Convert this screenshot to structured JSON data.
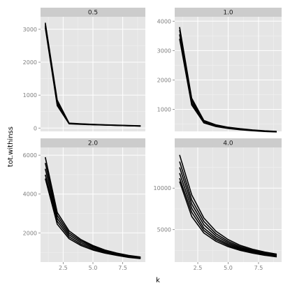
{
  "chart_data": {
    "type": "line",
    "facet_layout": "2x2",
    "xlabel": "k",
    "ylabel": "tot.withinss",
    "x": [
      1,
      2,
      3,
      4,
      5,
      6,
      7,
      8,
      9
    ],
    "xlim": [
      0.6,
      9.4
    ],
    "x_ticks": [
      2.5,
      5.0,
      7.5
    ],
    "x_tick_labels": [
      "2.5",
      "5.0",
      "7.5"
    ],
    "grid": true,
    "background_color": "#e5e5e5",
    "strip_color": "#cccccc",
    "line_color": "#000000",
    "panels": [
      {
        "strip": "0.5",
        "ylim": [
          -100,
          3380
        ],
        "y_ticks": [
          0,
          1000,
          2000,
          3000
        ],
        "y_tick_labels": [
          "0",
          "1000",
          "2000",
          "3000"
        ],
        "show_x_ticks": false,
        "series": [
          {
            "values": [
              3200,
              850,
              150,
              130,
              115,
              100,
              90,
              80,
              70
            ]
          },
          {
            "values": [
              3150,
              780,
              140,
              125,
              110,
              95,
              85,
              75,
              65
            ]
          },
          {
            "values": [
              3100,
              720,
              135,
              120,
              105,
              92,
              82,
              72,
              62
            ]
          },
          {
            "values": [
              3050,
              680,
              130,
              115,
              100,
              90,
              80,
              70,
              60
            ]
          }
        ]
      },
      {
        "strip": "1.0",
        "ylim": [
          250,
          4150
        ],
        "y_ticks": [
          1000,
          2000,
          3000,
          4000
        ],
        "y_tick_labels": [
          "1000",
          "2000",
          "3000",
          "4000"
        ],
        "show_x_ticks": false,
        "series": [
          {
            "values": [
              3800,
              1380,
              620,
              470,
              390,
              340,
              300,
              270,
              250
            ]
          },
          {
            "values": [
              3700,
              1300,
              590,
              450,
              375,
              330,
              290,
              262,
              242
            ]
          },
          {
            "values": [
              3550,
              1220,
              560,
              430,
              360,
              318,
              282,
              255,
              236
            ]
          },
          {
            "values": [
              3400,
              1150,
              540,
              415,
              350,
              305,
              272,
              246,
              230
            ]
          }
        ]
      },
      {
        "strip": "2.0",
        "ylim": [
          500,
          6400
        ],
        "y_ticks": [
          2000,
          4000,
          6000
        ],
        "y_tick_labels": [
          "2000",
          "4000",
          "6000"
        ],
        "show_x_ticks": true,
        "series": [
          {
            "values": [
              5900,
              3050,
              2100,
              1650,
              1350,
              1120,
              960,
              840,
              760
            ]
          },
          {
            "values": [
              5600,
              2900,
              2000,
              1580,
              1300,
              1080,
              930,
              820,
              740
            ]
          },
          {
            "values": [
              5300,
              2750,
              1900,
              1500,
              1240,
              1040,
              900,
              790,
              715
            ]
          },
          {
            "values": [
              5000,
              2600,
              1800,
              1420,
              1180,
              1000,
              870,
              765,
              695
            ]
          },
          {
            "values": [
              4800,
              2450,
              1700,
              1350,
              1120,
              960,
              840,
              740,
              675
            ]
          }
        ]
      },
      {
        "strip": "4.0",
        "ylim": [
          1100,
          14900
        ],
        "y_ticks": [
          5000,
          10000
        ],
        "y_tick_labels": [
          "5000",
          "10000"
        ],
        "show_x_ticks": true,
        "series": [
          {
            "values": [
              14000,
              9200,
              6400,
              4800,
              3800,
              3100,
              2650,
              2300,
              2050
            ]
          },
          {
            "values": [
              13200,
              8600,
              6000,
              4500,
              3600,
              2950,
              2520,
              2200,
              1960
            ]
          },
          {
            "values": [
              12500,
              8100,
              5600,
              4250,
              3420,
              2820,
              2420,
              2120,
              1890
            ]
          },
          {
            "values": [
              11800,
              7600,
              5200,
              4000,
              3250,
              2700,
              2330,
              2050,
              1830
            ]
          },
          {
            "values": [
              11200,
              7100,
              4900,
              3800,
              3100,
              2600,
              2250,
              1980,
              1770
            ]
          },
          {
            "values": [
              10800,
              6600,
              4600,
              3600,
              2950,
              2500,
              2180,
              1920,
              1720
            ]
          }
        ]
      }
    ]
  }
}
